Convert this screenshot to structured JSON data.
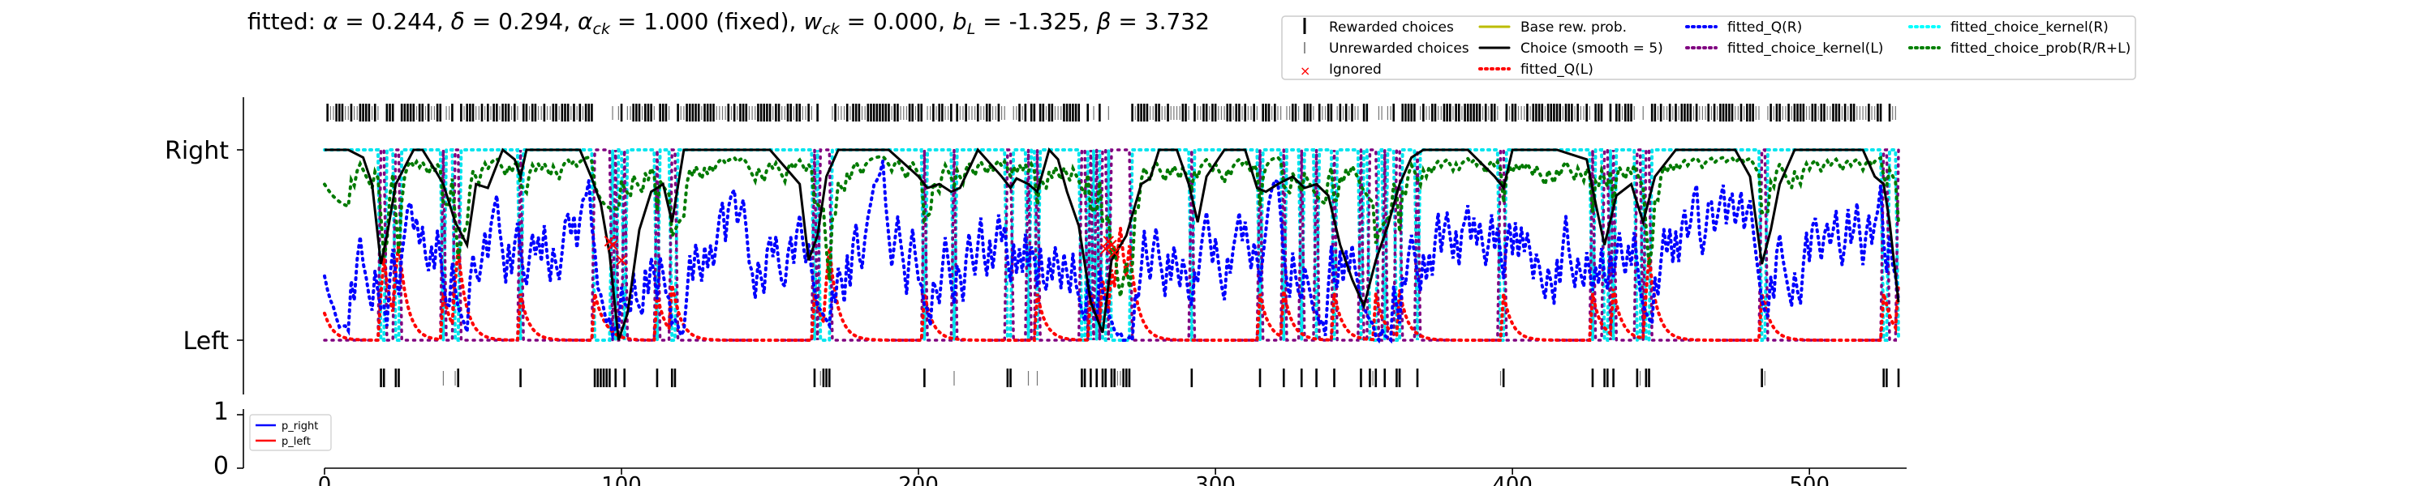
{
  "chart_data": [
    {
      "type": "line",
      "panel": "choices",
      "title_parts": {
        "prefix": "fitted: ",
        "alpha_sym": "α",
        "alpha": "0.244",
        "delta_sym": "δ",
        "delta": "0.294",
        "alpha_ck_sym": "α",
        "alpha_ck_sub": "ck",
        "alpha_ck": "1.000 (fixed)",
        "w_ck_sym": "w",
        "w_ck_sub": "ck",
        "w_ck": "0.000",
        "b_sym": "b",
        "b_sub": "L",
        "b": "-1.325",
        "beta_sym": "β",
        "beta": "3.732"
      },
      "ytick_labels": [
        "Left",
        "Right"
      ],
      "xlim": [
        -27,
        530
      ],
      "ylim": [
        -0.35,
        1.35
      ],
      "legend": {
        "placement": "upper-right",
        "entries": [
          {
            "label": "Rewarded choices",
            "key": "rewarded",
            "color": "#000000"
          },
          {
            "label": "Unrewarded choices",
            "key": "unrewarded",
            "color": "#555555"
          },
          {
            "label": "Ignored",
            "key": "ignored",
            "color": "#ff0000"
          },
          {
            "label": "Base rew. prob.",
            "key": "base",
            "color": "#bcbc00"
          },
          {
            "label": "Choice (smooth = 5)",
            "key": "choice",
            "color": "#000000"
          },
          {
            "label": "fitted_Q(L)",
            "key": "qL",
            "color": "#ff0000"
          },
          {
            "label": "fitted_Q(R)",
            "key": "qR",
            "color": "#0000ff"
          },
          {
            "label": "fitted_choice_kernel(L)",
            "key": "ckL",
            "color": "#800080"
          },
          {
            "label": "fitted_choice_kernel(R)",
            "key": "ckR",
            "color": "#00ffff"
          },
          {
            "label": "fitted_choice_prob(R/R+L)",
            "key": "prob",
            "color": "#008000"
          }
        ]
      },
      "left_blocks": [
        [
          19,
          21
        ],
        [
          24,
          26
        ],
        [
          40,
          41
        ],
        [
          44,
          46
        ],
        [
          66,
          67
        ],
        [
          91,
          97
        ],
        [
          98,
          99
        ],
        [
          101,
          102
        ],
        [
          112,
          113
        ],
        [
          117,
          119
        ],
        [
          165,
          166
        ],
        [
          167,
          171
        ],
        [
          202,
          203
        ],
        [
          212,
          213
        ],
        [
          230,
          232
        ],
        [
          237,
          238
        ],
        [
          240,
          241
        ],
        [
          255,
          257
        ],
        [
          258,
          259
        ],
        [
          260,
          261
        ],
        [
          262,
          264
        ],
        [
          265,
          272
        ],
        [
          292,
          293
        ],
        [
          315,
          316
        ],
        [
          323,
          324
        ],
        [
          329,
          330
        ],
        [
          334,
          335
        ],
        [
          340,
          341
        ],
        [
          349,
          350
        ],
        [
          352,
          355
        ],
        [
          357,
          358
        ],
        [
          361,
          363
        ],
        [
          368,
          369
        ],
        [
          396,
          398
        ],
        [
          427,
          428
        ],
        [
          431,
          433
        ],
        [
          434,
          435
        ],
        [
          442,
          444
        ],
        [
          445,
          447
        ],
        [
          484,
          486
        ],
        [
          525,
          527
        ],
        [
          530,
          531
        ]
      ],
      "rewarded_right_x": [
        9,
        12,
        17,
        22,
        27,
        28,
        33,
        38,
        43,
        49,
        50,
        53,
        57,
        58,
        62,
        64,
        66,
        70,
        74,
        77,
        80,
        82,
        88,
        89,
        98,
        101,
        104,
        110,
        113,
        118,
        122,
        123,
        125,
        128,
        130,
        136,
        138,
        140,
        146,
        150,
        152,
        159,
        160,
        163,
        176,
        179,
        183,
        185,
        188,
        193,
        197,
        205,
        208,
        212,
        216,
        220,
        224,
        227,
        230,
        234,
        238,
        240,
        244,
        249,
        255,
        260,
        265,
        270,
        275,
        280,
        284,
        289,
        293,
        297,
        300,
        304,
        307,
        310,
        313,
        317,
        320,
        323,
        326,
        330,
        334,
        338,
        342,
        346,
        349,
        352,
        357,
        360,
        366,
        370,
        374,
        378,
        381,
        384,
        389,
        393,
        397,
        401,
        405,
        408,
        412,
        415,
        418,
        422,
        425,
        428,
        430,
        433,
        436,
        439,
        442,
        445,
        450,
        455,
        458,
        462,
        466,
        470,
        474,
        477,
        480,
        484,
        487,
        490,
        495,
        498,
        502,
        505,
        508,
        512,
        515,
        520,
        524,
        527
      ],
      "smooth_choice": {
        "x": [
          0,
          8,
          13,
          16,
          19,
          21,
          24,
          26,
          30,
          33,
          37,
          40,
          44,
          48,
          51,
          55,
          60,
          64,
          66,
          68,
          72,
          78,
          86,
          90,
          93,
          96,
          99,
          102,
          106,
          110,
          114,
          117,
          121,
          130,
          140,
          150,
          160,
          163,
          166,
          169,
          173,
          180,
          190,
          200,
          203,
          207,
          211,
          214,
          220,
          228,
          231,
          233,
          237,
          240,
          244,
          247,
          250,
          254,
          258,
          262,
          265,
          270,
          275,
          278,
          281,
          287,
          291,
          294,
          297,
          303,
          310,
          314,
          317,
          321,
          326,
          330,
          334,
          338,
          342,
          346,
          350,
          354,
          358,
          362,
          366,
          370,
          375,
          385,
          394,
          397,
          400,
          405,
          415,
          425,
          428,
          431,
          435,
          440,
          444,
          448,
          455,
          465,
          475,
          480,
          484,
          487,
          490,
          495,
          500,
          510,
          518,
          522,
          525,
          527,
          530
        ],
        "y": [
          1.0,
          1.0,
          0.96,
          0.82,
          0.4,
          0.55,
          0.82,
          0.88,
          1.0,
          1.0,
          0.9,
          0.82,
          0.62,
          0.5,
          0.82,
          0.8,
          1.0,
          0.95,
          0.86,
          1.0,
          1.0,
          1.0,
          1.0,
          0.85,
          0.72,
          0.45,
          0.0,
          0.14,
          0.58,
          0.78,
          0.82,
          0.62,
          1.0,
          1.0,
          1.0,
          1.0,
          0.82,
          0.42,
          0.55,
          0.86,
          1.0,
          1.0,
          1.0,
          0.86,
          0.8,
          0.82,
          0.78,
          0.8,
          1.0,
          0.86,
          0.8,
          0.85,
          0.82,
          0.78,
          1.0,
          0.95,
          0.78,
          0.6,
          0.2,
          0.04,
          0.42,
          0.55,
          0.82,
          0.85,
          1.0,
          1.0,
          0.82,
          0.62,
          0.86,
          1.0,
          1.0,
          0.8,
          0.78,
          0.82,
          0.86,
          0.8,
          0.82,
          0.76,
          0.5,
          0.32,
          0.18,
          0.42,
          0.6,
          0.82,
          0.96,
          1.0,
          1.0,
          1.0,
          0.86,
          0.8,
          1.0,
          1.0,
          1.0,
          0.95,
          0.72,
          0.5,
          0.76,
          0.82,
          0.62,
          0.86,
          1.0,
          1.0,
          1.0,
          0.86,
          0.4,
          0.58,
          0.82,
          1.0,
          1.0,
          1.0,
          1.0,
          0.86,
          0.82,
          0.62,
          0.2
        ]
      },
      "ignored_points": [
        [
          96,
          0.52
        ],
        [
          97,
          0.5
        ],
        [
          100,
          0.42
        ],
        [
          263,
          0.48
        ],
        [
          264,
          0.52
        ],
        [
          265,
          0.5
        ],
        [
          266,
          0.46
        ]
      ]
    },
    {
      "type": "line",
      "panel": "reward-prob",
      "ytick_labels": [
        "0",
        "1"
      ],
      "ylim": [
        0,
        1
      ],
      "legend": {
        "placement": "upper-left",
        "entries": [
          {
            "label": "p_right",
            "color": "#0000ff"
          },
          {
            "label": "p_left",
            "color": "#ff0000"
          }
        ]
      },
      "xticks": [
        0,
        100,
        200,
        300,
        400,
        500
      ],
      "xtick_labels": [
        "0",
        "100",
        "200",
        "300",
        "400",
        "500"
      ]
    }
  ]
}
